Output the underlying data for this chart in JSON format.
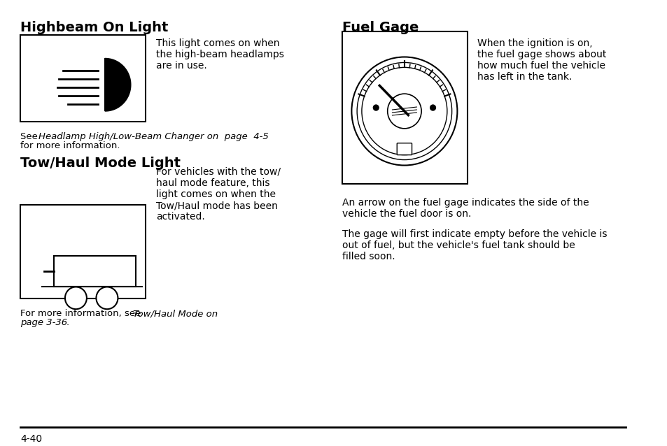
{
  "bg_color": "#ffffff",
  "title1": "Highbeam On Light",
  "title2": "Tow/Haul Mode Light",
  "title3": "Fuel Gage",
  "text_highbeam": "This light comes on when\nthe high-beam headlamps\nare in use.",
  "text_highbeam_ref": "See Headlamp High/Low-Beam Changer on  page  4-5\nfor more information.",
  "text_tow": "For vehicles with the tow/\nhaul mode feature, this\nlight comes on when the\nTow/Haul mode has been\nactivated.",
  "text_tow_ref": "For more information, see Tow/Haul Mode on\npage 3-36.",
  "text_fuel1": "When the ignition is on,\nthe fuel gage shows about\nhow much fuel the vehicle\nhas left in the tank.",
  "text_fuel2": "An arrow on the fuel gage indicates the side of the\nvehicle the fuel door is on.",
  "text_fuel3": "The gage will first indicate empty before the vehicle is\nout of fuel, but the vehicle's fuel tank should be\nfilled soon.",
  "page_num": "4-40",
  "font_color": "#000000"
}
